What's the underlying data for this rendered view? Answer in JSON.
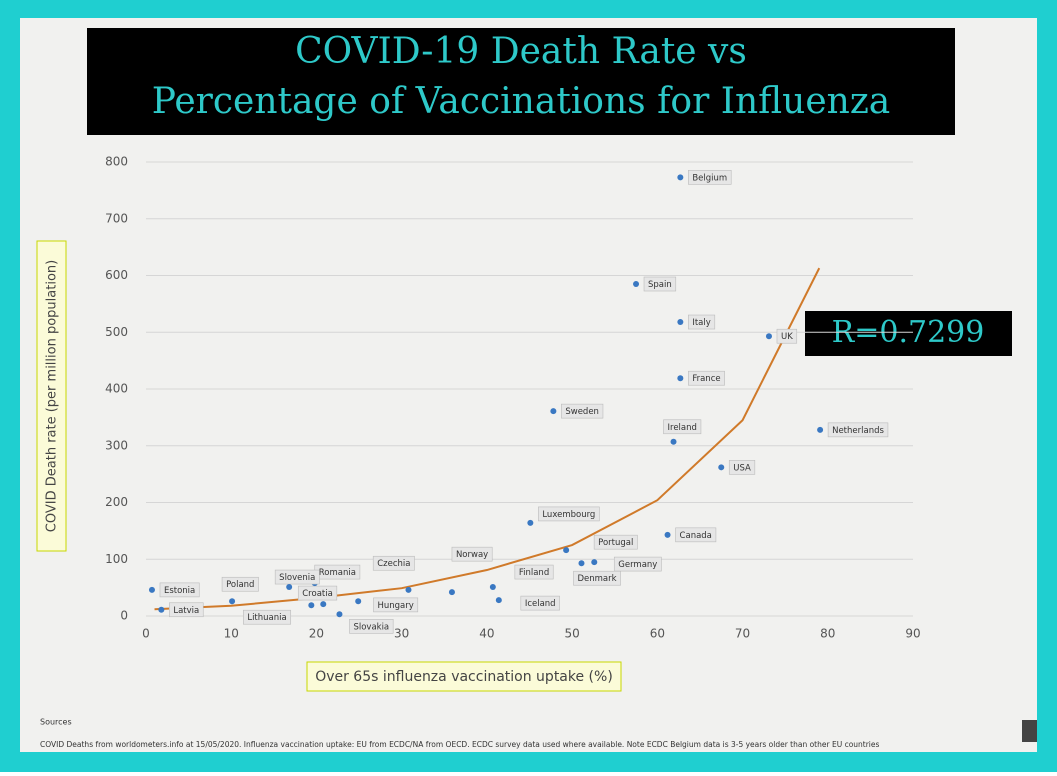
{
  "chart_data": {
    "type": "scatter",
    "title": [
      "COVID-19 Death Rate vs",
      "Percentage of Vaccinations for Influenza"
    ],
    "y_label": "COVID Death rate (per million population)",
    "x_label": "Over 65s influenza vaccination uptake (%)",
    "point_labels": [
      "Belgium",
      "Spain",
      "Italy",
      "UK",
      "France",
      "Sweden",
      "Ireland",
      "Netherlands",
      "USA",
      "Luxembourg",
      "Canada",
      "Portugal",
      "Germany",
      "Denmark",
      "Finland",
      "Iceland",
      "Norway",
      "Hungary",
      "Czechia",
      "Croatia",
      "Slovakia",
      "Lithuania",
      "Romania",
      "Slovenia",
      "Poland",
      "Estonia",
      "Latvia"
    ],
    "x": [
      62.7,
      57.5,
      62.7,
      73.1,
      62.7,
      47.8,
      61.9,
      79.1,
      67.5,
      45.1,
      61.2,
      49.3,
      52.6,
      51.1,
      40.7,
      41.4,
      35.9,
      30.8,
      24.9,
      20.8,
      22.7,
      19.4,
      19.8,
      16.8,
      10.1,
      0.7,
      1.8
    ],
    "values": [
      773,
      585,
      518,
      493,
      419,
      361,
      307,
      328,
      262,
      164,
      143,
      116,
      95,
      93,
      51,
      28,
      42,
      46,
      26,
      21,
      3,
      19,
      58,
      51,
      26,
      46,
      11
    ],
    "color": "#3a78c2",
    "xlim": [
      0,
      90
    ],
    "xticks": [
      0,
      10,
      20,
      30,
      40,
      50,
      60,
      70,
      80,
      90
    ],
    "ylim": [
      0,
      800
    ],
    "yticks": [
      0,
      100,
      200,
      300,
      400,
      500,
      600,
      700,
      800
    ],
    "grid": true,
    "trendline": {
      "color": "#d07a2a",
      "x": [
        1,
        10,
        20,
        30,
        40,
        50,
        60,
        70,
        79
      ],
      "y": [
        12,
        18,
        32,
        49,
        81,
        125,
        204,
        345,
        613
      ]
    },
    "annotation": "R=0.7299",
    "sources_heading": "Sources",
    "sources": "COVID Deaths from worldometers.info at 15/05/2020.  Influenza vaccination uptake:  EU from ECDC/NA from OECD.  ECDC survey data used where available.  Note ECDC Belgium data is 3-5 years older than other EU countries"
  }
}
